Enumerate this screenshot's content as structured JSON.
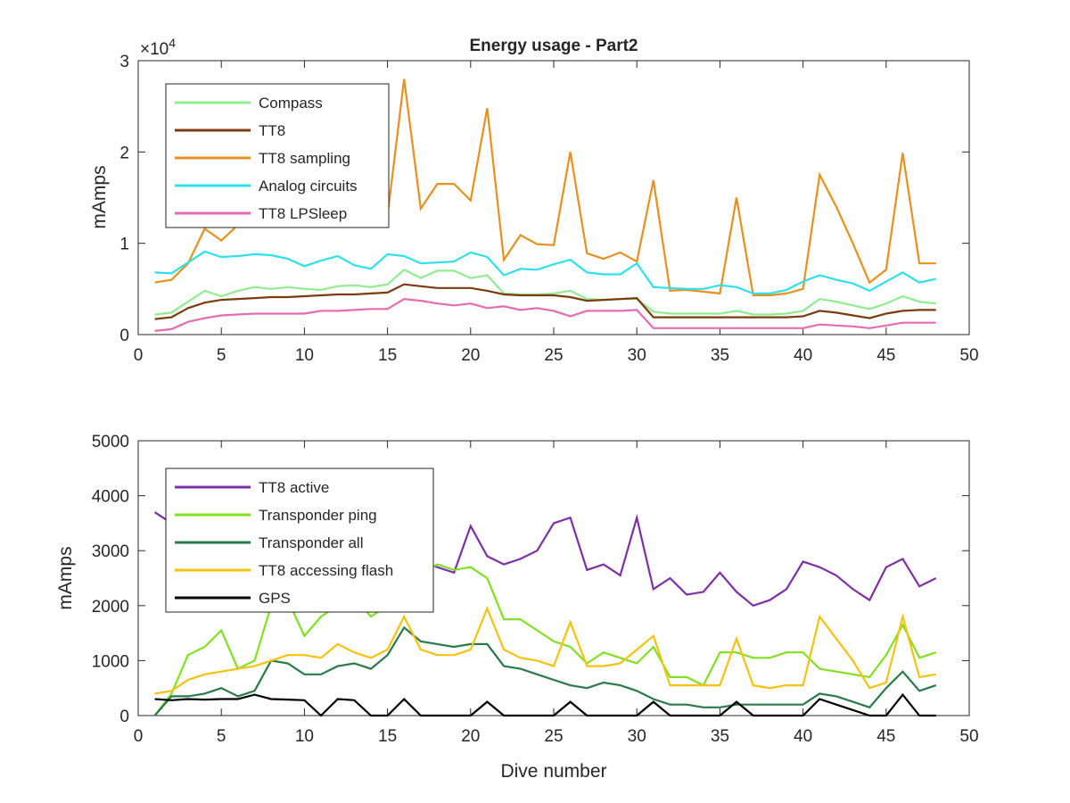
{
  "chart_data": [
    {
      "type": "line",
      "title": "Energy usage - Part2",
      "xlabel": "",
      "ylabel": "mAmps",
      "exponent_label": "×10",
      "exponent_power": "4",
      "xlim": [
        0,
        50
      ],
      "ylim": [
        0,
        30000
      ],
      "xticks": [
        0,
        5,
        10,
        15,
        20,
        25,
        30,
        35,
        40,
        45,
        50
      ],
      "yticks": [
        0,
        10000,
        20000,
        30000
      ],
      "ytick_labels": [
        "0",
        "1",
        "2",
        "3"
      ],
      "grid": false,
      "legend": "top-left",
      "x": [
        1,
        2,
        3,
        4,
        5,
        6,
        7,
        8,
        9,
        10,
        11,
        12,
        13,
        14,
        15,
        16,
        17,
        18,
        19,
        20,
        21,
        22,
        23,
        24,
        25,
        26,
        27,
        28,
        29,
        30,
        31,
        32,
        33,
        34,
        35,
        36,
        37,
        38,
        39,
        40,
        41,
        42,
        43,
        44,
        45,
        46,
        47,
        48
      ],
      "series": [
        {
          "name": "TT8 sampling",
          "color": "#e8901e",
          "values": [
            5700,
            6000,
            7800,
            11600,
            10300,
            12000,
            12500,
            12800,
            13000,
            12500,
            12000,
            12400,
            12600,
            12800,
            13000,
            28000,
            13800,
            16500,
            16500,
            14700,
            24800,
            8200,
            10900,
            9900,
            9800,
            20000,
            8900,
            8300,
            9000,
            8000,
            16900,
            4800,
            4900,
            4700,
            4500,
            15000,
            4300,
            4300,
            4500,
            5000,
            17500,
            14000,
            10000,
            5700,
            7100,
            19900,
            7800,
            7800
          ]
        },
        {
          "name": "Analog circuits",
          "color": "#2ee0ec",
          "values": [
            6800,
            6700,
            7900,
            9100,
            8500,
            8600,
            8800,
            8700,
            8300,
            7500,
            8100,
            8600,
            7600,
            7200,
            8800,
            8600,
            7800,
            7900,
            8000,
            9000,
            8500,
            6500,
            7200,
            7100,
            7700,
            8200,
            6800,
            6600,
            6600,
            7800,
            5200,
            5100,
            5000,
            5000,
            5400,
            5200,
            4500,
            4500,
            4900,
            5800,
            6500,
            6000,
            5600,
            4800,
            5800,
            6800,
            5700,
            6100
          ]
        },
        {
          "name": "Compass",
          "color": "#8fec8f",
          "values": [
            2200,
            2400,
            3600,
            4800,
            4200,
            4800,
            5200,
            5000,
            5200,
            5000,
            4900,
            5300,
            5400,
            5200,
            5500,
            7100,
            6200,
            7000,
            7000,
            6200,
            6500,
            4500,
            4400,
            4400,
            4500,
            4800,
            3900,
            3800,
            3900,
            3900,
            2500,
            2300,
            2300,
            2300,
            2300,
            2600,
            2200,
            2200,
            2300,
            2600,
            3900,
            3600,
            3200,
            2800,
            3400,
            4200,
            3600,
            3400
          ]
        },
        {
          "name": "TT8",
          "color": "#7a3c10",
          "values": [
            1700,
            1900,
            2900,
            3500,
            3800,
            3900,
            4000,
            4100,
            4100,
            4200,
            4300,
            4400,
            4400,
            4500,
            4600,
            5500,
            5300,
            5100,
            5100,
            5100,
            4800,
            4400,
            4300,
            4300,
            4300,
            4100,
            3700,
            3800,
            3900,
            4000,
            1900,
            1900,
            1900,
            1900,
            1900,
            1900,
            1900,
            1900,
            1900,
            2000,
            2600,
            2400,
            2100,
            1800,
            2300,
            2600,
            2700,
            2700
          ]
        },
        {
          "name": "TT8 LPSleep",
          "color": "#e66bb0",
          "values": [
            400,
            600,
            1400,
            1800,
            2100,
            2200,
            2300,
            2300,
            2300,
            2300,
            2600,
            2600,
            2700,
            2800,
            2800,
            3900,
            3700,
            3400,
            3200,
            3400,
            2900,
            3100,
            2700,
            2900,
            2600,
            2000,
            2600,
            2600,
            2600,
            2700,
            700,
            700,
            700,
            700,
            700,
            700,
            700,
            700,
            700,
            700,
            1100,
            1000,
            900,
            700,
            1000,
            1300,
            1300,
            1300
          ]
        }
      ]
    },
    {
      "type": "line",
      "title": "",
      "xlabel": "Dive number",
      "ylabel": "mAmps",
      "xlim": [
        0,
        50
      ],
      "ylim": [
        0,
        5000
      ],
      "xticks": [
        0,
        5,
        10,
        15,
        20,
        25,
        30,
        35,
        40,
        45,
        50
      ],
      "yticks": [
        0,
        1000,
        2000,
        3000,
        4000,
        5000
      ],
      "ytick_labels": [
        "0",
        "1000",
        "2000",
        "3000",
        "4000",
        "5000"
      ],
      "grid": false,
      "legend": "top-left",
      "x": [
        1,
        2,
        3,
        4,
        5,
        6,
        7,
        8,
        9,
        10,
        11,
        12,
        13,
        14,
        15,
        16,
        17,
        18,
        19,
        20,
        21,
        22,
        23,
        24,
        25,
        26,
        27,
        28,
        29,
        30,
        31,
        32,
        33,
        34,
        35,
        36,
        37,
        38,
        39,
        40,
        41,
        42,
        43,
        44,
        45,
        46,
        47,
        48
      ],
      "series": [
        {
          "name": "TT8 active",
          "color": "#7e2fa8",
          "values": [
            3700,
            3500,
            3300,
            3350,
            3400,
            3300,
            3250,
            3200,
            3150,
            3100,
            3050,
            3000,
            2950,
            2900,
            2900,
            2900,
            2800,
            2700,
            2600,
            3450,
            2900,
            2750,
            2850,
            3000,
            3500,
            3600,
            2650,
            2750,
            2550,
            3600,
            2300,
            2500,
            2200,
            2250,
            2600,
            2250,
            2000,
            2100,
            2300,
            2800,
            2700,
            2550,
            2300,
            2100,
            2700,
            2850,
            2350,
            2500
          ]
        },
        {
          "name": "Transponder ping",
          "color": "#7fe11f",
          "values": [
            0,
            400,
            1100,
            1250,
            1550,
            850,
            1000,
            2000,
            2100,
            1450,
            1800,
            2000,
            2150,
            1800,
            2000,
            2050,
            2600,
            2750,
            2650,
            2700,
            2500,
            1750,
            1750,
            1550,
            1350,
            1250,
            950,
            1150,
            1050,
            950,
            1250,
            700,
            700,
            550,
            1150,
            1150,
            1050,
            1050,
            1150,
            1150,
            850,
            800,
            750,
            700,
            1100,
            1650,
            1050,
            1150
          ]
        },
        {
          "name": "Transponder all",
          "color": "#2a7a4a",
          "values": [
            0,
            350,
            350,
            400,
            500,
            350,
            450,
            1000,
            950,
            750,
            750,
            900,
            950,
            850,
            1100,
            1600,
            1350,
            1300,
            1250,
            1300,
            1300,
            900,
            850,
            750,
            650,
            550,
            500,
            600,
            550,
            450,
            300,
            200,
            200,
            150,
            150,
            200,
            200,
            200,
            200,
            200,
            400,
            350,
            250,
            150,
            500,
            800,
            450,
            550
          ]
        },
        {
          "name": "TT8 accessing flash",
          "color": "#f7c10f",
          "values": [
            400,
            450,
            650,
            750,
            800,
            850,
            900,
            1000,
            1100,
            1100,
            1050,
            1300,
            1150,
            1050,
            1200,
            1800,
            1200,
            1100,
            1100,
            1200,
            1950,
            1200,
            1050,
            1000,
            900,
            1700,
            900,
            900,
            950,
            1200,
            1450,
            550,
            550,
            550,
            550,
            1400,
            550,
            500,
            550,
            550,
            1800,
            1400,
            1000,
            500,
            600,
            1800,
            700,
            750
          ]
        },
        {
          "name": "GPS",
          "color": "#000000",
          "values": [
            300,
            280,
            300,
            290,
            300,
            300,
            380,
            300,
            290,
            280,
            0,
            300,
            280,
            0,
            0,
            300,
            0,
            0,
            0,
            0,
            250,
            0,
            0,
            0,
            0,
            250,
            0,
            0,
            0,
            0,
            250,
            0,
            0,
            0,
            0,
            250,
            0,
            0,
            0,
            0,
            300,
            200,
            100,
            0,
            0,
            380,
            0,
            0
          ]
        }
      ]
    }
  ]
}
